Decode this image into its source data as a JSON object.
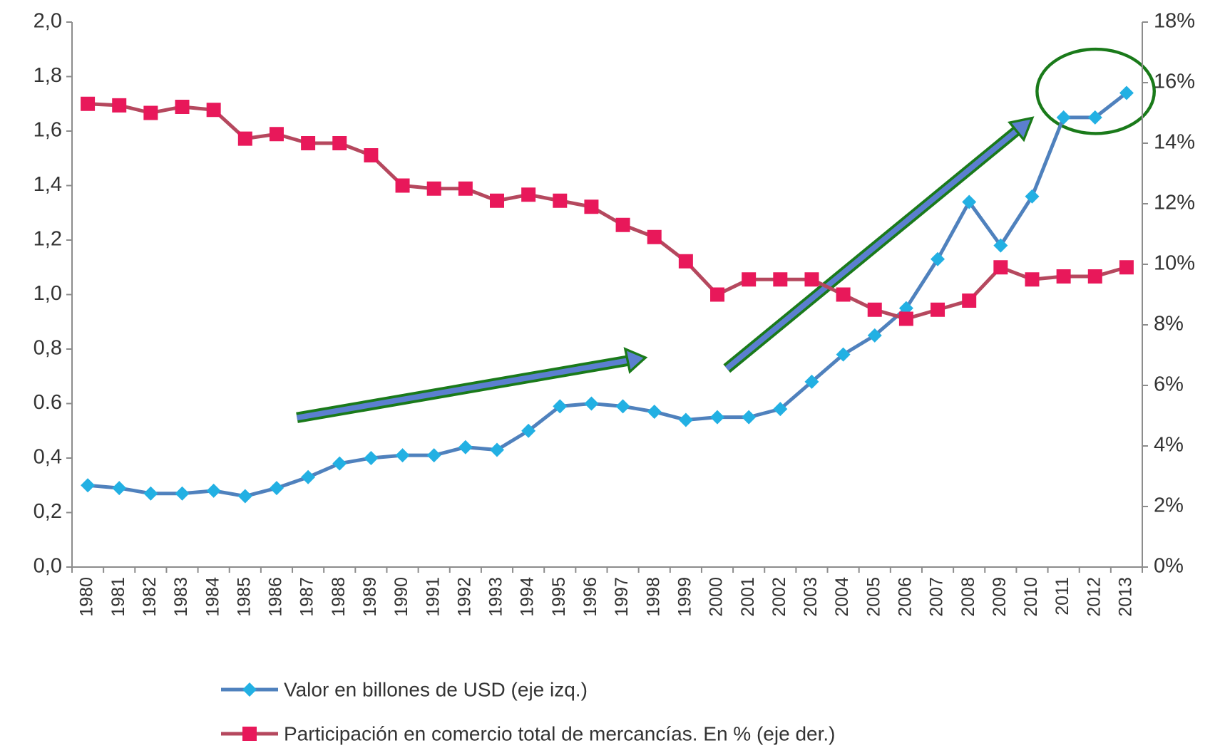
{
  "chart_data": {
    "type": "line",
    "categories": [
      "1980",
      "1981",
      "1982",
      "1983",
      "1984",
      "1985",
      "1986",
      "1987",
      "1988",
      "1989",
      "1990",
      "1991",
      "1992",
      "1993",
      "1994",
      "1995",
      "1996",
      "1997",
      "1998",
      "1999",
      "2000",
      "2001",
      "2002",
      "2003",
      "2004",
      "2005",
      "2006",
      "2007",
      "2008",
      "2009",
      "2010",
      "2011",
      "2012",
      "2013"
    ],
    "series": [
      {
        "name": "Valor en billones de USD (eje izq.)",
        "color": "#4f81bd",
        "marker_color": "#22b0e3",
        "marker": "diamond",
        "values": [
          0.3,
          0.29,
          0.27,
          0.27,
          0.28,
          0.26,
          0.29,
          0.33,
          0.38,
          0.4,
          0.41,
          0.41,
          0.44,
          0.43,
          0.5,
          0.59,
          0.6,
          0.59,
          0.57,
          0.54,
          0.55,
          0.55,
          0.58,
          0.68,
          0.78,
          0.85,
          0.95,
          1.13,
          1.34,
          1.18,
          1.36,
          1.65,
          1.65,
          1.74
        ]
      },
      {
        "name": "Participación en comercio total de mercancías. En % (eje der.)",
        "color": "#b5485e",
        "marker_color": "#e8185a",
        "marker": "square",
        "axis": "y2",
        "values": [
          15.3,
          15.25,
          15.0,
          15.2,
          15.1,
          14.15,
          14.3,
          14.0,
          14.0,
          13.6,
          12.6,
          12.5,
          12.5,
          12.1,
          12.3,
          12.1,
          11.9,
          11.3,
          10.9,
          10.1,
          9.0,
          9.5,
          9.5,
          9.5,
          9.0,
          8.5,
          8.2,
          8.5,
          8.8,
          9.9,
          9.5,
          9.6,
          9.6,
          9.9
        ]
      }
    ],
    "ylim": [
      0,
      2
    ],
    "yticks": [
      {
        "value": 0,
        "label": "0,0"
      },
      {
        "value": 0.2,
        "label": "0,2"
      },
      {
        "value": 0.4,
        "label": "0,4"
      },
      {
        "value": 0.6,
        "label": "0.6"
      },
      {
        "value": 0.8,
        "label": "0,8"
      },
      {
        "value": 1.0,
        "label": "1,0"
      },
      {
        "value": 1.2,
        "label": "1,2"
      },
      {
        "value": 1.4,
        "label": "1,4"
      },
      {
        "value": 1.6,
        "label": "1,6"
      },
      {
        "value": 1.8,
        "label": "1,8"
      },
      {
        "value": 2.0,
        "label": "2,0"
      }
    ],
    "y2lim": [
      0,
      18
    ],
    "y2ticks": [
      {
        "value": 0,
        "label": "0%"
      },
      {
        "value": 2,
        "label": "2%"
      },
      {
        "value": 4,
        "label": "4%"
      },
      {
        "value": 6,
        "label": "6%"
      },
      {
        "value": 8,
        "label": "8%"
      },
      {
        "value": 10,
        "label": "10%"
      },
      {
        "value": 12,
        "label": "12%"
      },
      {
        "value": 14,
        "label": "14%"
      },
      {
        "value": 16,
        "label": "16%"
      },
      {
        "value": 18,
        "label": "18%"
      }
    ],
    "grid": false
  }
}
